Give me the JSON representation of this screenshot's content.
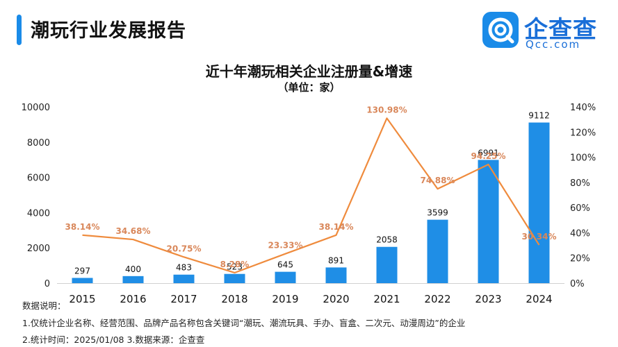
{
  "header": {
    "title": "潮玩行业发展报告",
    "logo_brand": "企查查",
    "logo_domain": "Qcc.com"
  },
  "colors": {
    "accent": "#1a8be8",
    "bar": "#1f8ee6",
    "line": "#ef8b3d",
    "line_label": "#d9875a"
  },
  "chart_data": {
    "type": "bar",
    "title": "近十年潮玩相关企业注册量&增速",
    "subtitle": "（单位：家）",
    "categories": [
      "2015",
      "2016",
      "2017",
      "2018",
      "2019",
      "2020",
      "2021",
      "2022",
      "2023",
      "2024"
    ],
    "series": [
      {
        "type": "bar",
        "axis": "left",
        "values": [
          297,
          400,
          483,
          523,
          645,
          891,
          2058,
          3599,
          6991,
          9112
        ],
        "labels": [
          "297",
          "400",
          "483",
          "523",
          "645",
          "891",
          "2058",
          "3599",
          "6991",
          "9112"
        ]
      },
      {
        "type": "line",
        "axis": "right",
        "values": [
          38.14,
          34.68,
          20.75,
          8.28,
          23.33,
          38.14,
          130.98,
          74.88,
          94.25,
          30.34
        ],
        "labels": [
          "38.14%",
          "34.68%",
          "20.75%",
          "8.28%",
          "23.33%",
          "38.14%",
          "130.98%",
          "74.88%",
          "94.25%",
          "30.34%"
        ]
      }
    ],
    "y_left": {
      "range": [
        0,
        10000
      ],
      "ticks": [
        "0",
        "2000",
        "4000",
        "6000",
        "8000",
        "10000"
      ]
    },
    "y_right": {
      "range": [
        0,
        140
      ],
      "ticks": [
        "0%",
        "20%",
        "40%",
        "60%",
        "80%",
        "100%",
        "120%",
        "140%"
      ]
    },
    "grid": false,
    "legend": "none"
  },
  "notes": [
    "数据说明：",
    "1.仅统计企业名称、经营范围、品牌产品名称包含关键词“潮玩、潮流玩具、手办、盲盒、二次元、动漫周边”的企业",
    "2.统计时间：2025/01/08    3.数据来源：企查查"
  ]
}
